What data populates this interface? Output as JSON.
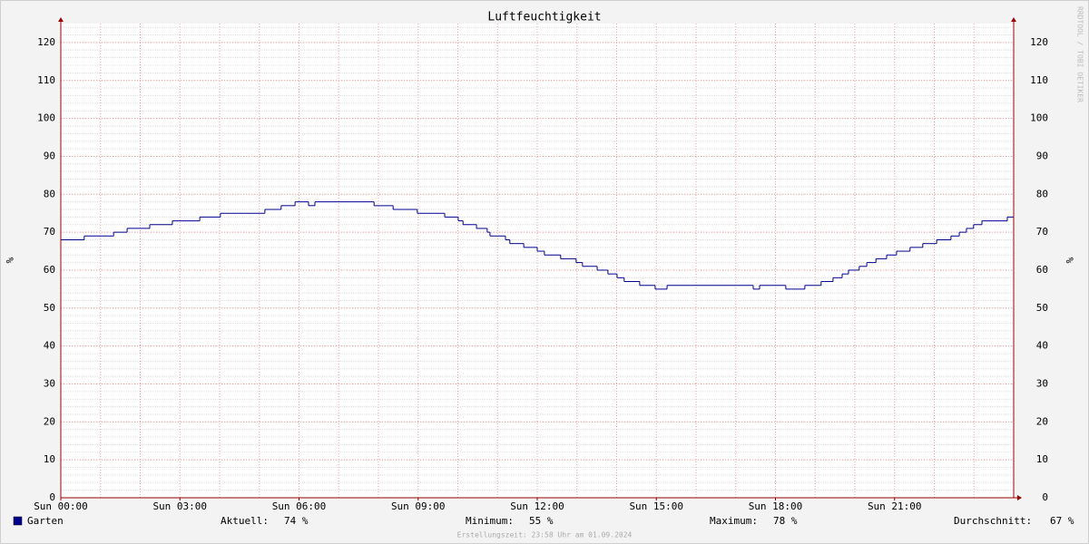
{
  "chart_data": {
    "type": "line",
    "title": "Luftfeuchtigkeit",
    "ylabel": "%",
    "watermark": "RRDTOOL / TOBI OETIKER",
    "footer": "Erstellungszeit: 23:58 Uhr am 01.09.2024",
    "x": [
      0,
      0.59,
      1.33,
      1.67,
      2.24,
      2.81,
      3.5,
      4.02,
      5.14,
      5.55,
      5.9,
      6.24,
      6.4,
      7.89,
      8.37,
      8.98,
      9.67,
      10.01,
      10.13,
      10.47,
      10.74,
      10.81,
      11.2,
      11.31,
      11.66,
      12.0,
      12.18,
      12.59,
      12.98,
      13.14,
      13.51,
      13.78,
      14.01,
      14.19,
      14.58,
      14.97,
      15.27,
      17.44,
      17.6,
      18.26,
      18.74,
      19.15,
      19.45,
      19.68,
      19.84,
      20.11,
      20.3,
      20.53,
      20.8,
      21.05,
      21.39,
      21.71,
      22.06,
      22.42,
      22.63,
      22.81,
      22.99,
      23.2,
      23.84,
      24
    ],
    "series": [
      {
        "name": "Garten",
        "color": "#000090",
        "values": [
          68,
          69,
          70,
          71,
          72,
          73,
          74,
          75,
          76,
          77,
          78,
          77,
          78,
          77,
          76,
          75,
          74,
          73,
          72,
          71,
          70,
          69,
          68,
          67,
          66,
          65,
          64,
          63,
          62,
          61,
          60,
          59,
          58,
          57,
          56,
          55,
          56,
          55,
          56,
          55,
          56,
          57,
          58,
          59,
          60,
          61,
          62,
          63,
          64,
          65,
          66,
          67,
          68,
          69,
          70,
          71,
          72,
          73,
          74,
          74
        ]
      }
    ],
    "xlim": [
      0,
      24
    ],
    "xticks": [
      {
        "value": 0,
        "label": "Sun 00:00"
      },
      {
        "value": 3,
        "label": "Sun 03:00"
      },
      {
        "value": 6,
        "label": "Sun 06:00"
      },
      {
        "value": 9,
        "label": "Sun 09:00"
      },
      {
        "value": 12,
        "label": "Sun 12:00"
      },
      {
        "value": 15,
        "label": "Sun 15:00"
      },
      {
        "value": 18,
        "label": "Sun 18:00"
      },
      {
        "value": 21,
        "label": "Sun 21:00"
      }
    ],
    "ylim": [
      0,
      125
    ],
    "yticks": [
      0,
      10,
      20,
      30,
      40,
      50,
      60,
      70,
      80,
      90,
      100,
      110,
      120
    ],
    "grid": {
      "x_step": 1,
      "y_minor_step": 2
    },
    "stats": {
      "labels": [
        "Aktuell:",
        "Minimum:",
        "Maximum:",
        "Durchschnitt:"
      ],
      "values": [
        74,
        55,
        78,
        67
      ],
      "value_labels": [
        "74 %",
        "55 %",
        "78 %",
        "67 %"
      ]
    }
  }
}
